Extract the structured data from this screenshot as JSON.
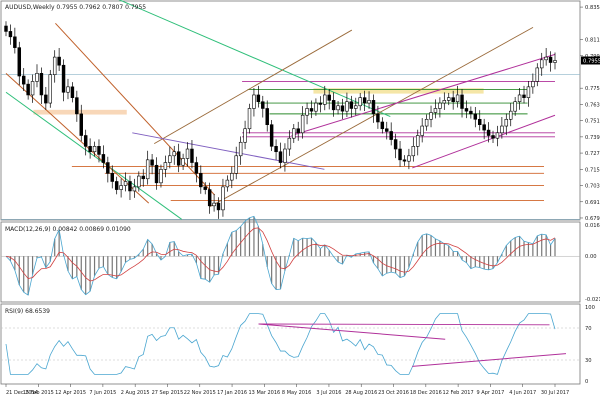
{
  "header": {
    "main": "AUDUSD,Weekly  0.7955 0.7962 0.7807 0.7955",
    "macd": "MACD(12,26,9) 0.00842 0.00869 0.01090",
    "rsi": "RSI(9) 68.6539"
  },
  "chart_data": [
    {
      "type": "candlestick",
      "title": "AUDUSD,Weekly",
      "ohlc_header": [
        0.7955,
        0.7962,
        0.7807,
        0.7955
      ],
      "y_ticks": [
        "0.8350",
        "0.8110",
        "0.7990",
        "0.7750",
        "0.7630",
        "0.7510",
        "0.7390",
        "0.7270",
        "0.7150",
        "0.7030",
        "0.6910",
        "0.6790"
      ],
      "ylim": [
        0.6775,
        0.8395
      ],
      "x_labels": [
        "21 Dec 2014",
        "15 Feb 2015",
        "12 Apr 2015",
        "7 Jun 2015",
        "2 Aug 2015",
        "27 Sep 2015",
        "22 Nov 2015",
        "17 Jan 2016",
        "13 Mar 2016",
        "8 May 2016",
        "3 Jul 2016",
        "28 Aug 2016",
        "23 Oct 2016",
        "18 Dec 2016",
        "12 Feb 2017",
        "9 Apr 2017",
        "4 Jun 2017",
        "30 Jul 2017"
      ],
      "close_path": [
        0.817,
        0.813,
        0.805,
        0.784,
        0.778,
        0.77,
        0.78,
        0.786,
        0.77,
        0.764,
        0.785,
        0.798,
        0.792,
        0.772,
        0.776,
        0.768,
        0.756,
        0.74,
        0.732,
        0.728,
        0.732,
        0.726,
        0.72,
        0.712,
        0.706,
        0.7,
        0.703,
        0.706,
        0.699,
        0.702,
        0.71,
        0.708,
        0.722,
        0.718,
        0.705,
        0.715,
        0.72,
        0.725,
        0.728,
        0.718,
        0.723,
        0.73,
        0.72,
        0.712,
        0.702,
        0.7,
        0.688,
        0.69,
        0.685,
        0.702,
        0.707,
        0.712,
        0.725,
        0.735,
        0.745,
        0.76,
        0.77,
        0.765,
        0.76,
        0.748,
        0.732,
        0.728,
        0.72,
        0.73,
        0.738,
        0.745,
        0.742,
        0.755,
        0.76,
        0.758,
        0.764,
        0.763,
        0.77,
        0.766,
        0.759,
        0.762,
        0.758,
        0.765,
        0.76,
        0.762,
        0.768,
        0.764,
        0.766,
        0.756,
        0.75,
        0.745,
        0.743,
        0.737,
        0.73,
        0.722,
        0.721,
        0.725,
        0.732,
        0.74,
        0.747,
        0.752,
        0.757,
        0.76,
        0.764,
        0.766,
        0.768,
        0.765,
        0.77,
        0.76,
        0.758,
        0.756,
        0.752,
        0.748,
        0.744,
        0.74,
        0.738,
        0.742,
        0.747,
        0.752,
        0.758,
        0.765,
        0.77,
        0.768,
        0.776,
        0.78,
        0.79,
        0.796,
        0.798,
        0.794,
        0.7955
      ],
      "horizontal_levels": {
        "grey": [
          0.785,
          0.678
        ],
        "magenta": [
          0.78,
          0.742,
          0.739
        ],
        "green": [
          0.774,
          0.764,
          0.756
        ],
        "orange": [
          0.717,
          0.712,
          0.703,
          0.692
        ],
        "yellow_zone": [
          0.771,
          0.775
        ],
        "peach_zone": [
          0.7555,
          0.759
        ]
      },
      "price_tags": [
        "0.7955"
      ]
    },
    {
      "type": "bar-line",
      "title": "MACD(12,26,9)",
      "values": [
        0.00842,
        0.00869,
        0.0109
      ],
      "y_ticks": [
        "0.01616",
        "0.00",
        "-0.02159"
      ],
      "ylim": [
        -0.02159,
        0.01616
      ]
    },
    {
      "type": "line",
      "title": "RSI(9)",
      "values": [
        68.6539
      ],
      "y_ticks": [
        "100",
        "70",
        "30",
        "0"
      ],
      "ylim": [
        0,
        100
      ]
    }
  ]
}
